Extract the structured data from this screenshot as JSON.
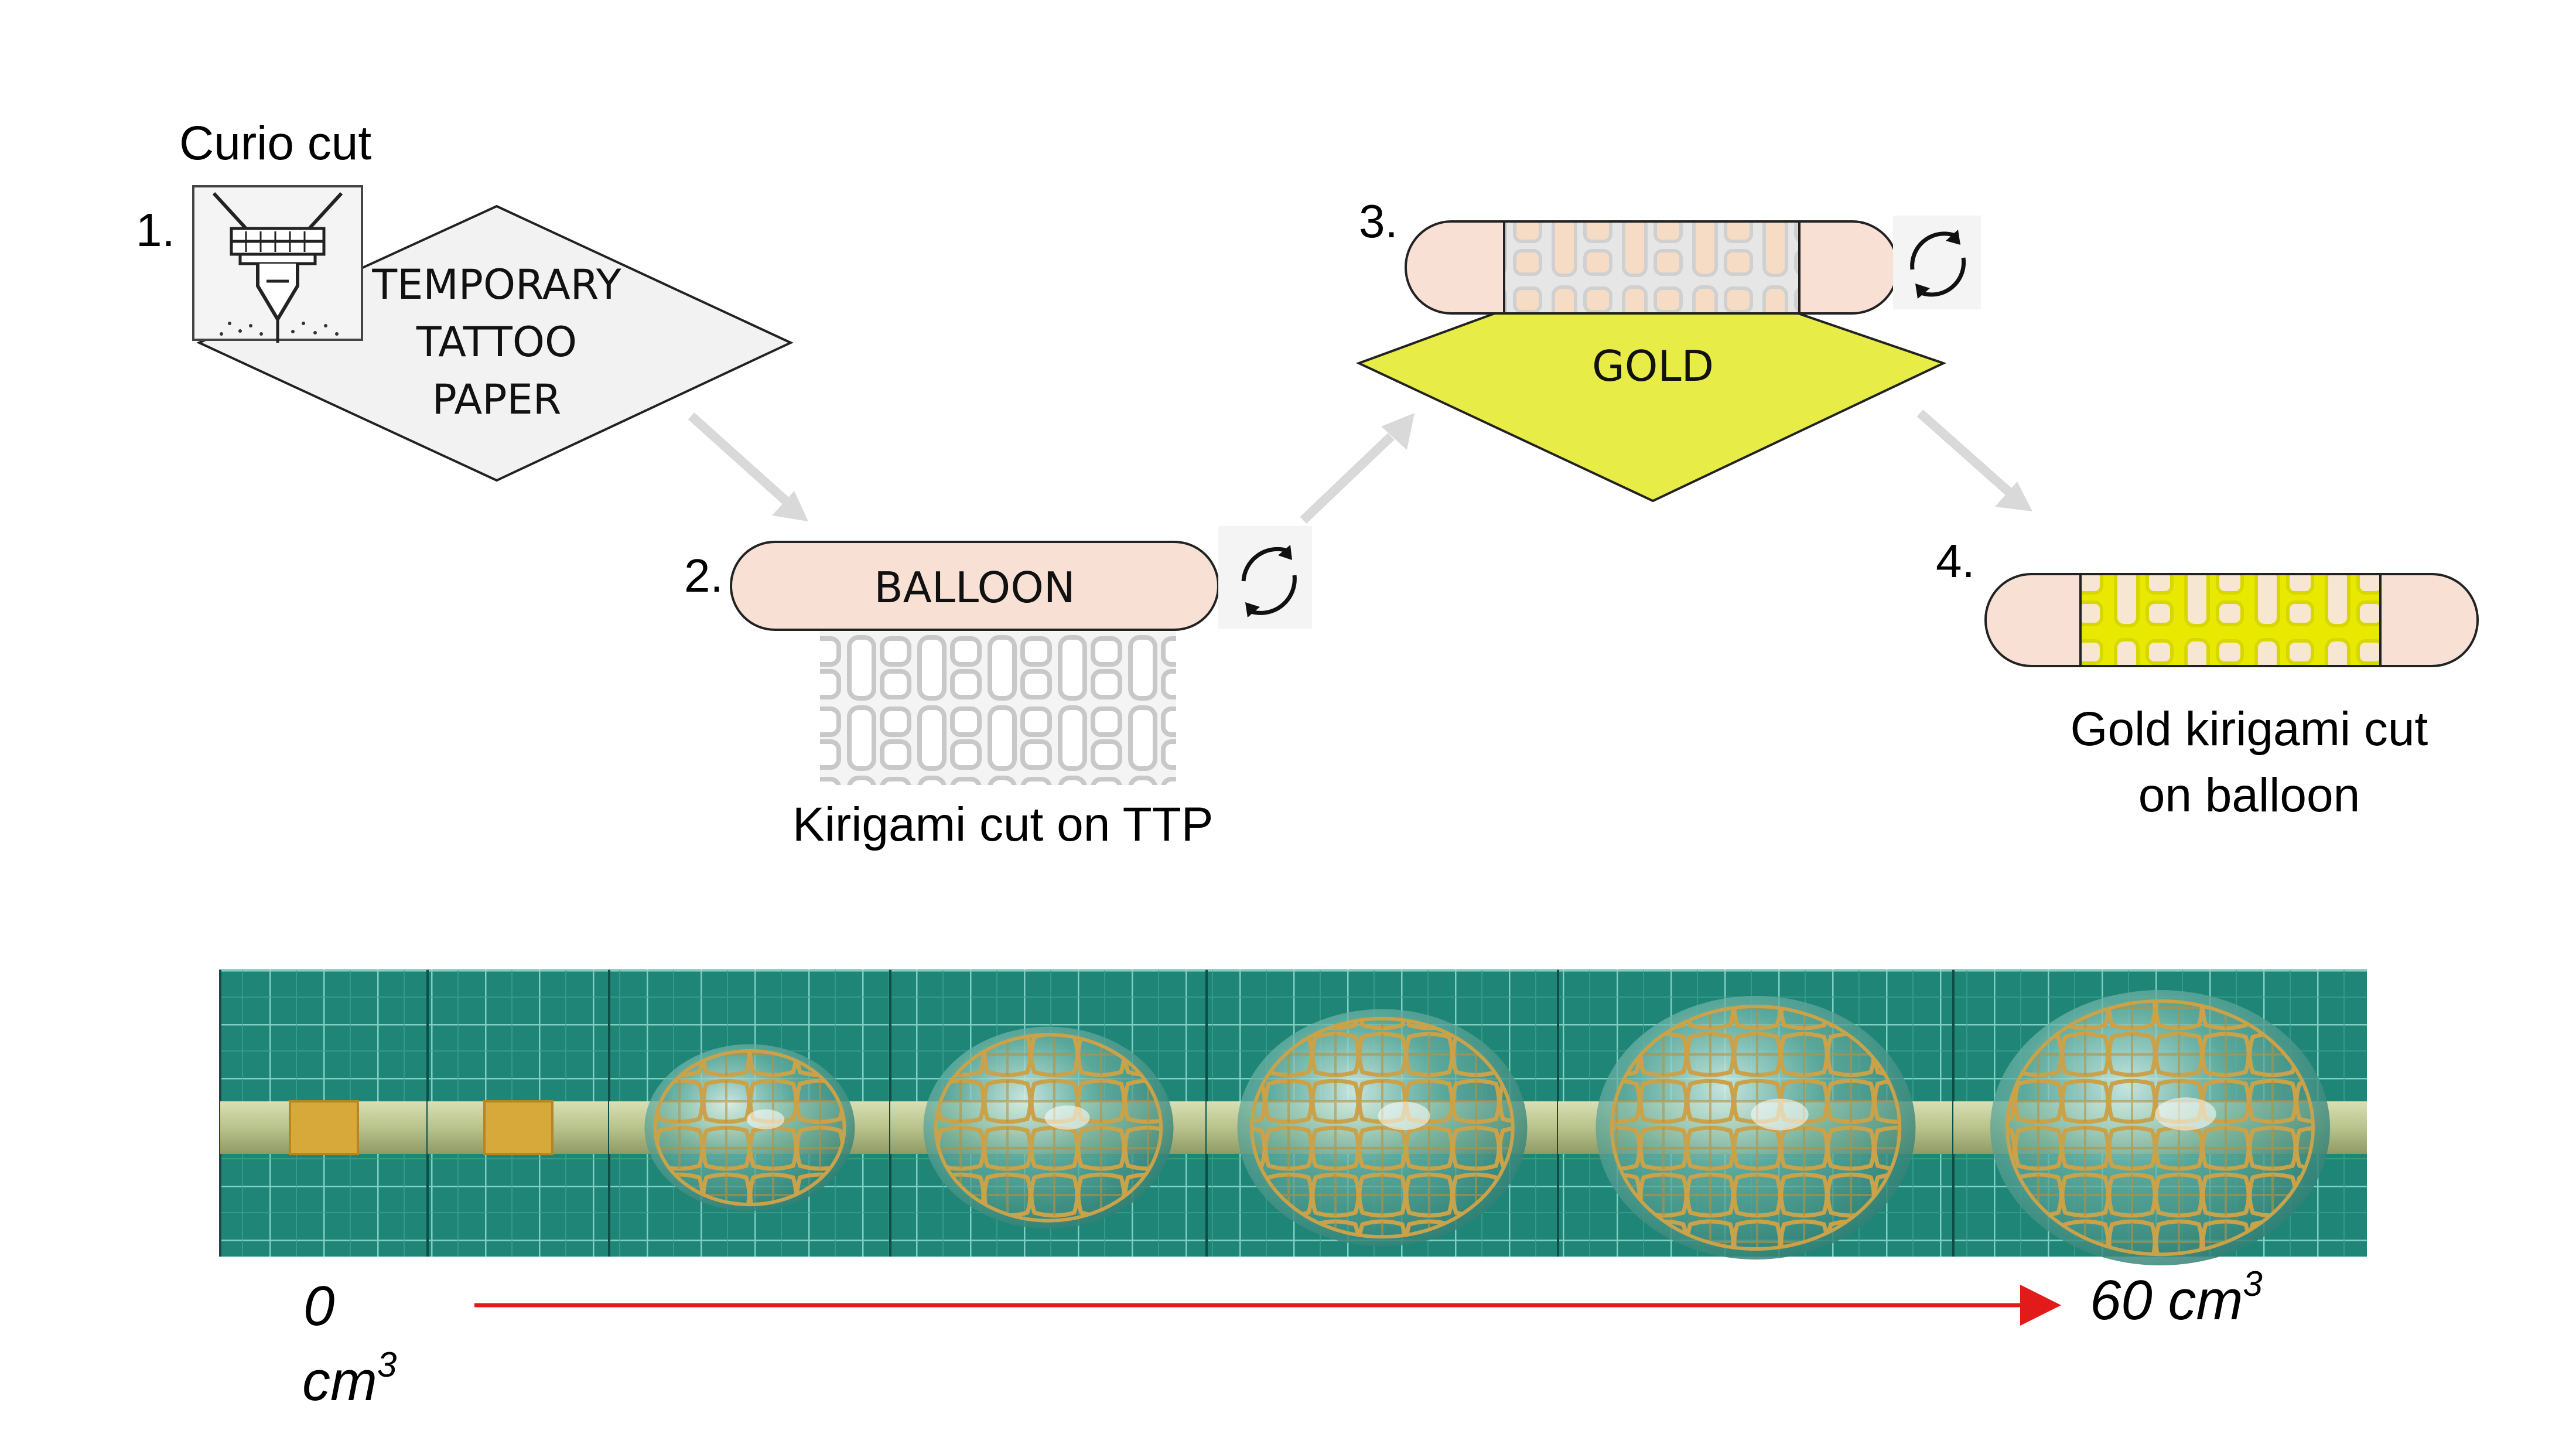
{
  "steps": {
    "step1": {
      "number": "1.",
      "tool_label": "Curio cut",
      "sheet_lines": [
        "TEMPORARY",
        "TATTOO",
        "PAPER"
      ]
    },
    "step2": {
      "number": "2.",
      "balloon_label": "BALLOON",
      "caption": "Kirigami cut on TTP"
    },
    "step3": {
      "number": "3.",
      "sheet_label": "GOLD"
    },
    "step4": {
      "number": "4.",
      "caption_lines": [
        "Gold kirigami cut",
        "on balloon"
      ]
    }
  },
  "photo_strip": {
    "start_label": "0",
    "start_unit": "cm",
    "start_sup": "3",
    "end_label": "60 cm",
    "end_sup": "3",
    "frame_count": 7,
    "inflation_levels": [
      0,
      0,
      0.35,
      0.55,
      0.75,
      0.9,
      1.0
    ]
  },
  "colors": {
    "balloon": "#f8e1d4",
    "gold": "#e8ec46",
    "gold_pattern": "#e6e600",
    "arrow_grey": "#d9d9d9",
    "progress_arrow": "#e31a1a",
    "sheet_grey": "#f2f2f2",
    "mat_green": "#1d7f72"
  },
  "icons": [
    "cutter-icon",
    "rotate-icon"
  ]
}
